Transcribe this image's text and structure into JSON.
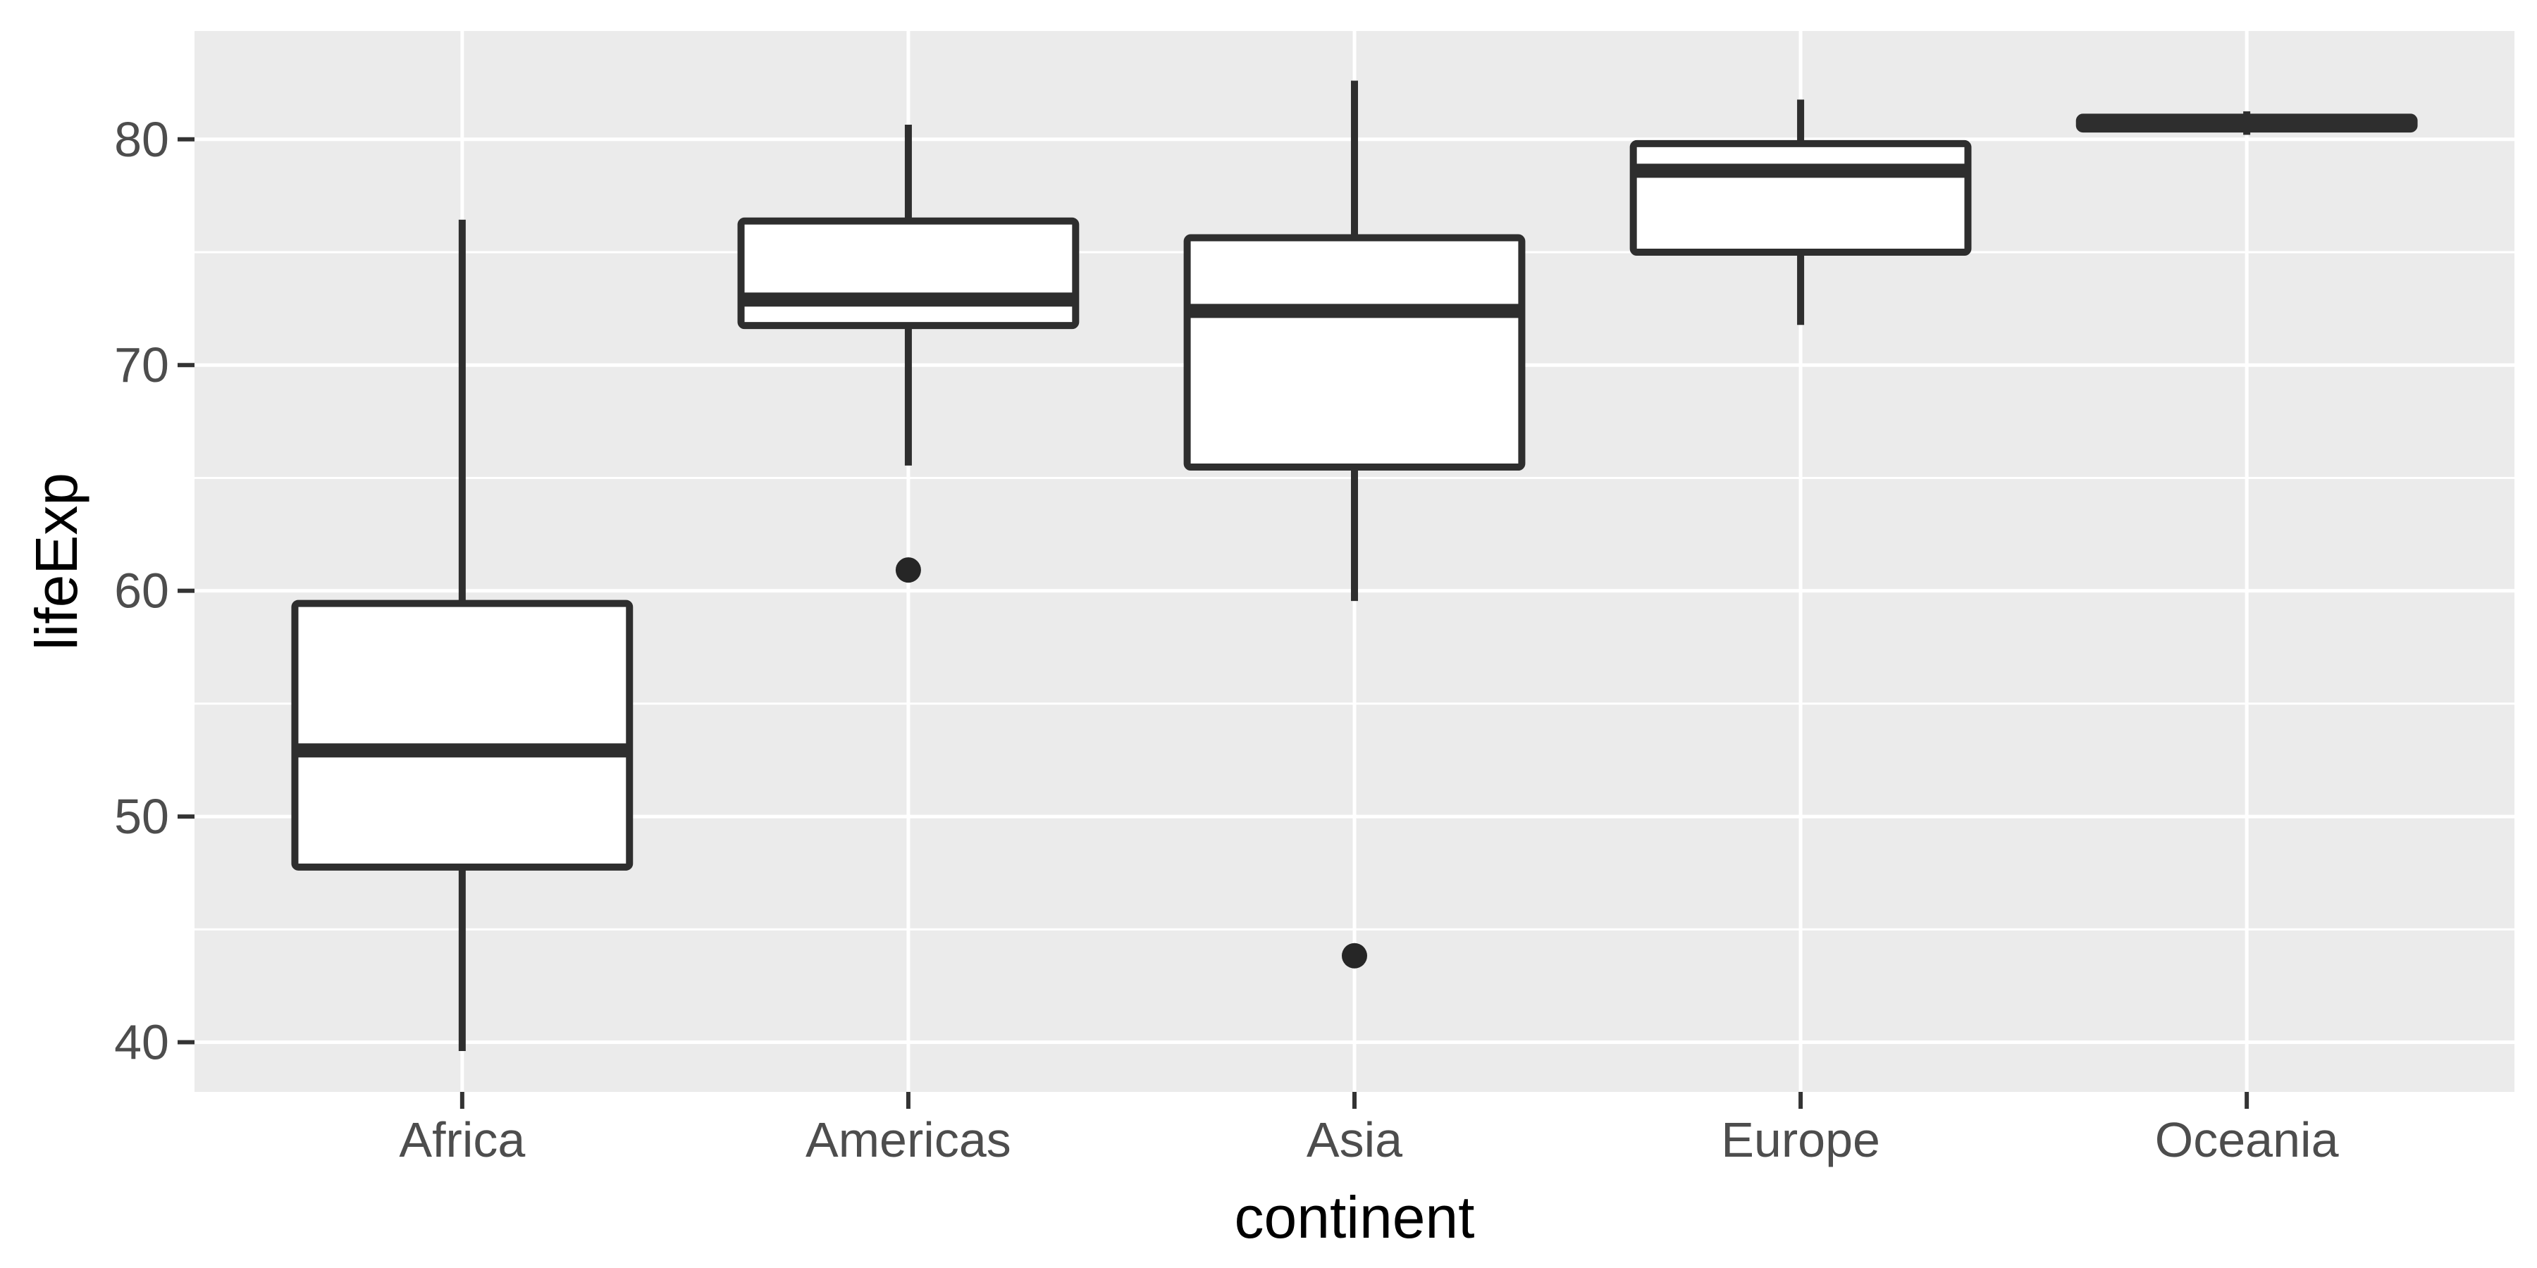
{
  "figure": {
    "kind": "ggplot-style statistical graphic",
    "title": "",
    "legend": "none"
  },
  "chart_data": {
    "type": "boxplot",
    "title": "",
    "xlabel": "continent",
    "ylabel": "lifeExp",
    "categories": [
      "Africa",
      "Americas",
      "Asia",
      "Europe",
      "Oceania"
    ],
    "series": [
      {
        "name": "Africa",
        "whisker_low": 39.61,
        "q1": 47.76,
        "median": 52.93,
        "q3": 59.44,
        "whisker_high": 76.44,
        "outliers": []
      },
      {
        "name": "Americas",
        "whisker_low": 65.55,
        "q1": 71.75,
        "median": 72.9,
        "q3": 76.38,
        "whisker_high": 80.65,
        "outliers": [
          60.92
        ]
      },
      {
        "name": "Asia",
        "whisker_low": 59.55,
        "q1": 65.48,
        "median": 72.4,
        "q3": 75.64,
        "whisker_high": 82.6,
        "outliers": [
          43.83
        ]
      },
      {
        "name": "Europe",
        "whisker_low": 71.78,
        "q1": 75.0,
        "median": 78.61,
        "q3": 79.81,
        "whisker_high": 81.76,
        "outliers": []
      },
      {
        "name": "Oceania",
        "whisker_low": 80.2,
        "q1": 80.46,
        "median": 80.72,
        "q3": 80.98,
        "whisker_high": 81.24,
        "outliers": []
      }
    ],
    "y_ticks": [
      40,
      50,
      60,
      70,
      80
    ],
    "y_minor_ticks": [
      45,
      55,
      65,
      75
    ],
    "ylim": [
      37.8,
      84.8
    ],
    "grid": "horizontal major+minor white lines, vertical white line at each category center",
    "legend": "none",
    "style": {
      "panel_bg": "#EBEBEB",
      "grid_color": "#FFFFFF",
      "box_fill": "#FFFFFF",
      "box_stroke": "#2E2E2E",
      "outlier_color": "#262626",
      "tick_label_color": "#4D4D4D",
      "tick_mark_color": "#333333",
      "axis_title_color": "#000000"
    }
  }
}
